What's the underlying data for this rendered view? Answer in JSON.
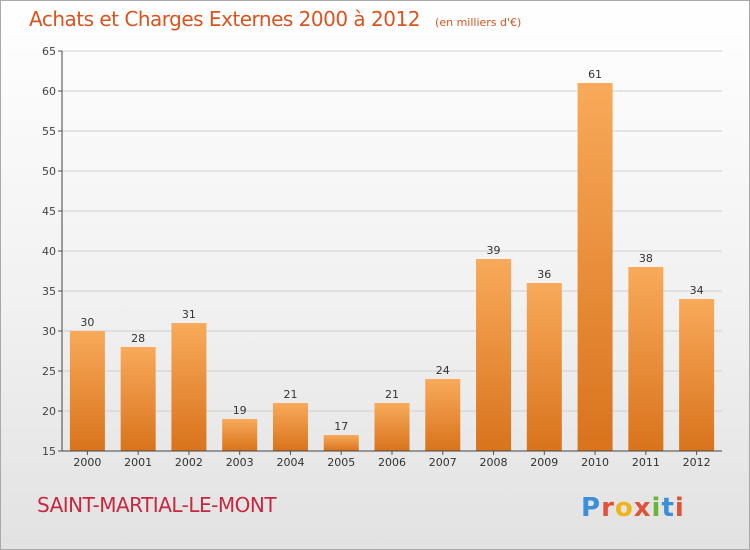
{
  "header": {
    "title": "Achats et Charges Externes 2000 à 2012",
    "subtitle": "(en milliers d'€)"
  },
  "footer": {
    "place": "SAINT-MARTIAL-LE-MONT",
    "logo_text": "Proxiti"
  },
  "colors": {
    "title": "#d9541e",
    "place": "#c8283f",
    "bar_top": "#f8aa5a",
    "bar_bottom": "#d9731c"
  },
  "chart_data": {
    "type": "bar",
    "categories": [
      "2000",
      "2001",
      "2002",
      "2003",
      "2004",
      "2005",
      "2006",
      "2007",
      "2008",
      "2009",
      "2010",
      "2011",
      "2012"
    ],
    "values": [
      30,
      28,
      31,
      19,
      21,
      17,
      21,
      24,
      39,
      36,
      61,
      38,
      34
    ],
    "ylim": [
      15,
      65
    ],
    "yticks": [
      15,
      20,
      25,
      30,
      35,
      40,
      45,
      50,
      55,
      60,
      65
    ],
    "grid": true,
    "data_labels": true
  }
}
